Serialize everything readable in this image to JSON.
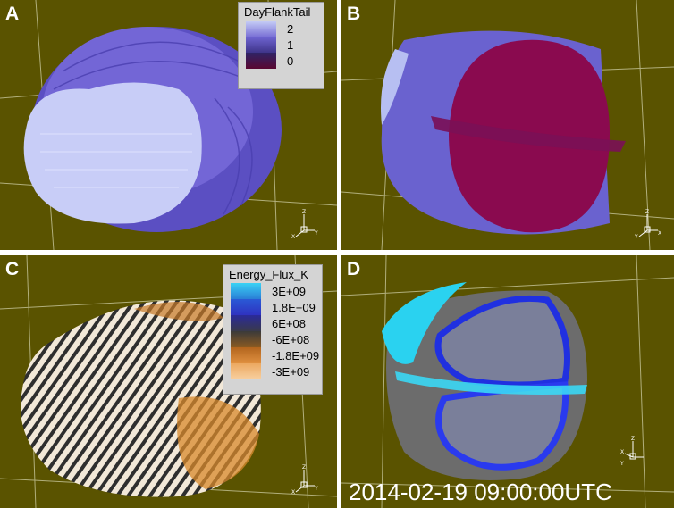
{
  "panels": {
    "a": {
      "label": "A"
    },
    "b": {
      "label": "B"
    },
    "c": {
      "label": "C"
    },
    "d": {
      "label": "D"
    }
  },
  "legend_a": {
    "title": "DayFlankTail",
    "entries": [
      {
        "value": "2",
        "color": "#7b72d6"
      },
      {
        "value": "1",
        "color": "#3f3489"
      },
      {
        "value": "0",
        "color": "#5a0832"
      }
    ]
  },
  "legend_c": {
    "title": "Energy_Flux_K",
    "entries": [
      {
        "value": "3E+09",
        "color": "#2ab8e8"
      },
      {
        "value": "1.8E+09",
        "color": "#2f42c8"
      },
      {
        "value": "6E+08",
        "color": "#34358a"
      },
      {
        "value": "-6E+08",
        "color": "#6c5222"
      },
      {
        "value": "-1.8E+09",
        "color": "#d67a2c"
      },
      {
        "value": "-3E+09",
        "color": "#f2bd80"
      }
    ]
  },
  "axis_labels": {
    "x": "X",
    "y": "Y",
    "z": "Z"
  },
  "timestamp": "2014-02-19 09:00:00UTC",
  "colors": {
    "background": "#5a5300",
    "grid": "#cfcfa8",
    "purple": "#6b5fd0",
    "light_purple": "#b7bff2",
    "magenta": "#8a0a4f",
    "blue": "#2222dd",
    "cyan": "#20ccee",
    "gray": "#6a6a6a"
  }
}
